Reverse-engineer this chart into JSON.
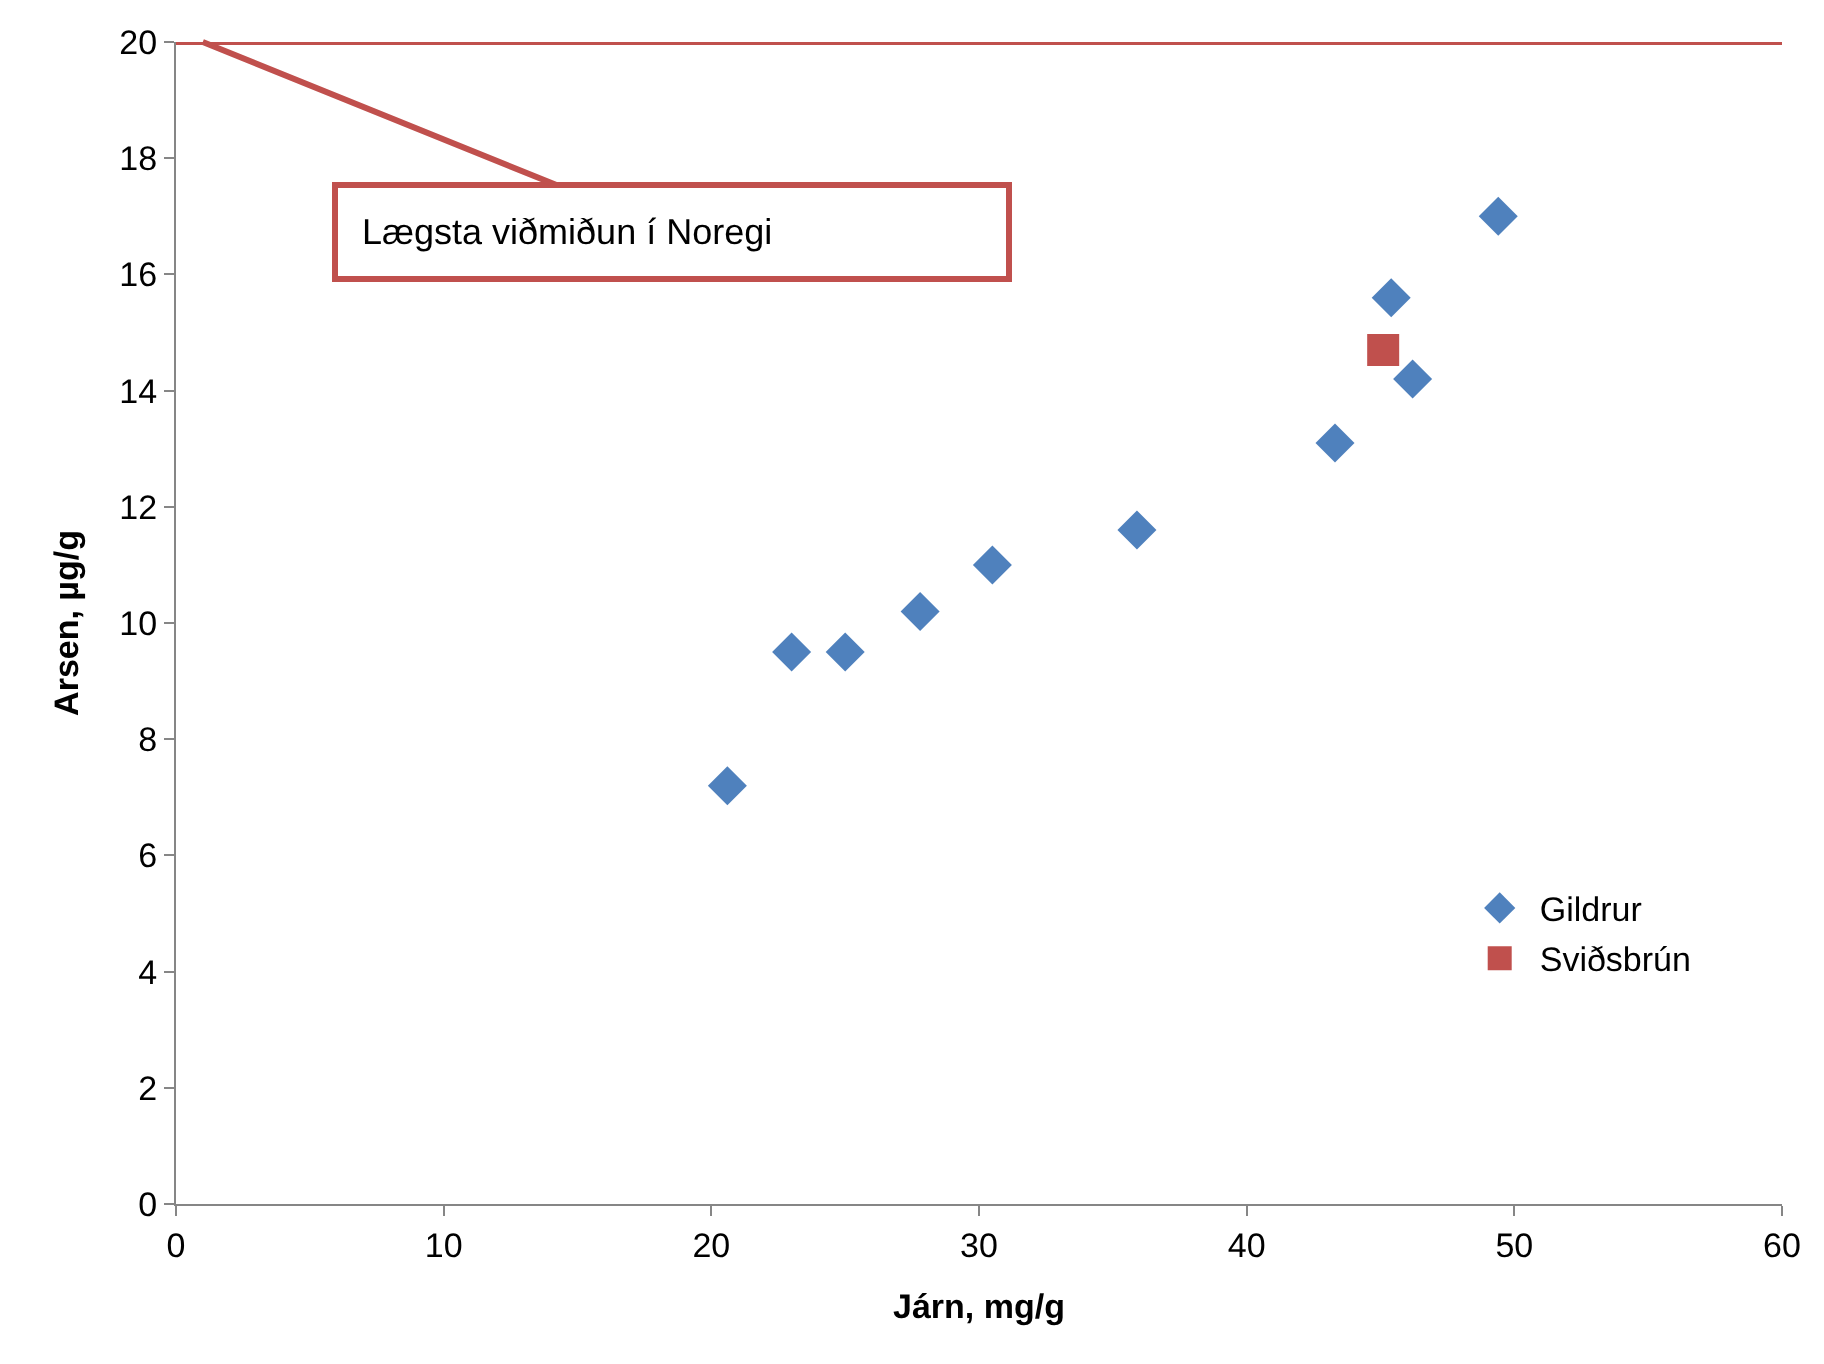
{
  "chart_data": {
    "type": "scatter",
    "xlabel": "Járn, mg/g",
    "ylabel": "Arsen, µg/g",
    "xlim": [
      0,
      60
    ],
    "xticks": [
      0,
      10,
      20,
      30,
      40,
      50,
      60
    ],
    "ylim": [
      0,
      20
    ],
    "yticks": [
      0,
      2,
      4,
      6,
      8,
      10,
      12,
      14,
      16,
      18,
      20
    ],
    "legend": "bottom right",
    "series": [
      {
        "name": "Gildrur",
        "color": "#4f81bd",
        "marker": "diamond",
        "x": [
          20.6,
          23.0,
          25.0,
          27.8,
          30.5,
          35.9,
          43.3,
          45.4,
          46.2,
          49.4
        ],
        "values": [
          7.2,
          9.5,
          9.5,
          10.2,
          11.0,
          11.6,
          13.1,
          15.6,
          14.2,
          17.0
        ]
      },
      {
        "name": "Sviðsbrún",
        "color": "#c0504d",
        "marker": "square",
        "x": [
          45.1
        ],
        "values": [
          14.7
        ]
      }
    ],
    "ref_lines": [
      {
        "axis": "y",
        "value": 20,
        "color": "#c0504d",
        "line_style": "solid"
      }
    ],
    "annotations": [
      {
        "text": "Lægsta viðmiðun í Noregi",
        "x": 1,
        "y": 20
      }
    ]
  }
}
